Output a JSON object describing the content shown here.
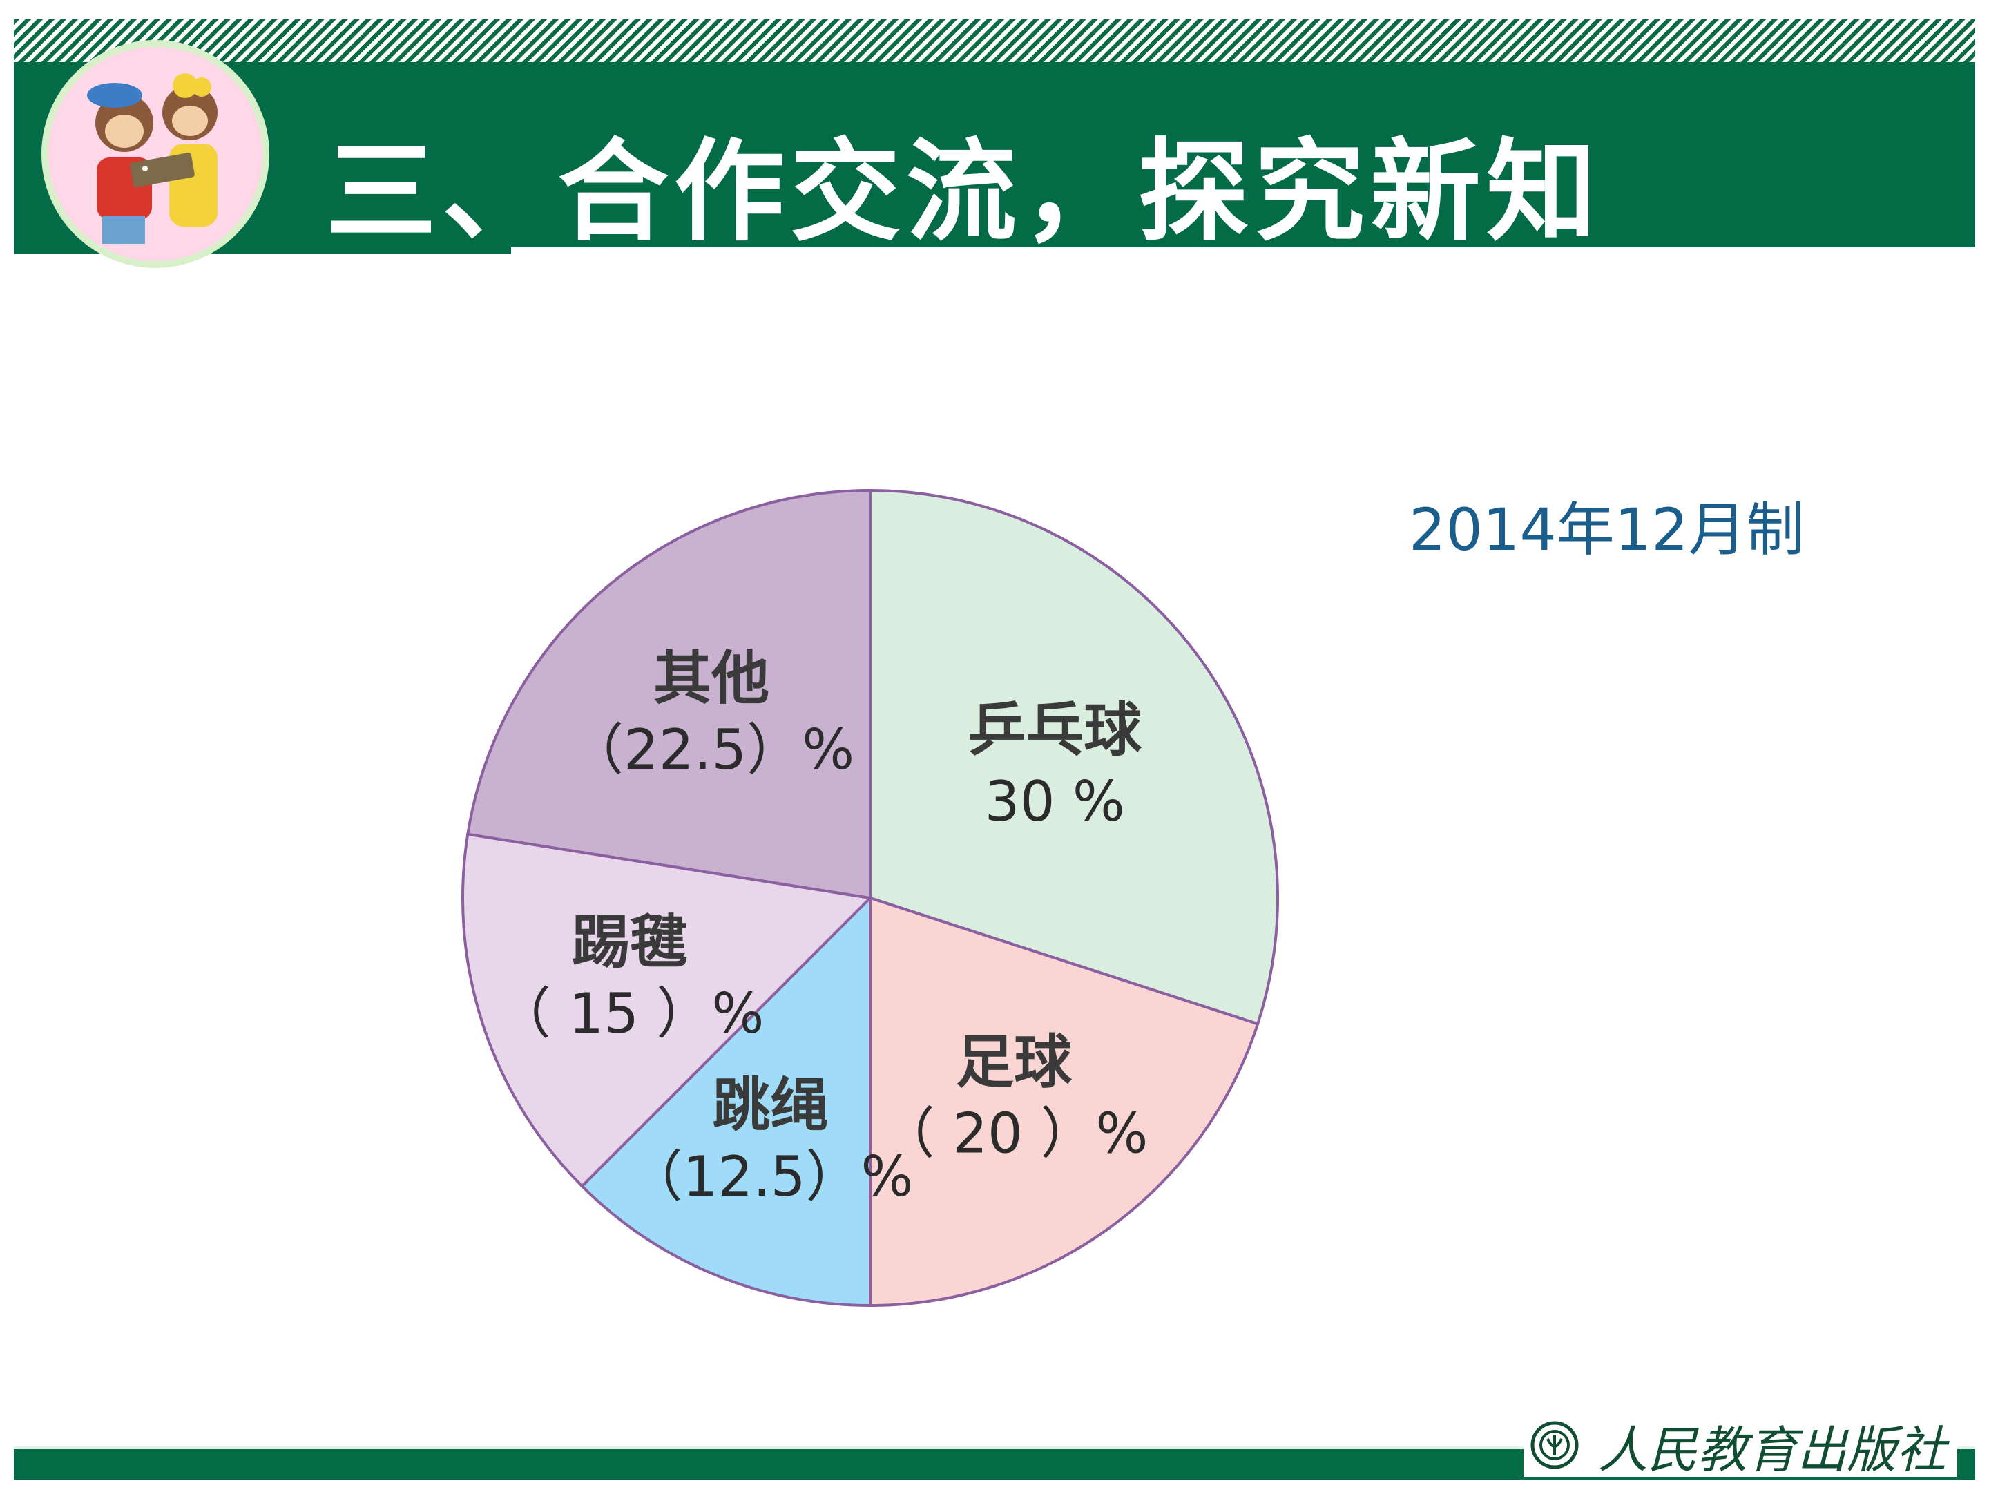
{
  "header": {
    "title": "三、合作交流，探究新知"
  },
  "note": {
    "date": "2014年12月制"
  },
  "footer": {
    "publisher": "人民教育出版社"
  },
  "colors": {
    "header_green": "#036b45",
    "pingpong": "#d9eedf",
    "football": "#f9d5d3",
    "jumprope": "#a0dcf7",
    "shuttlecock": "#e8d6ea",
    "other": "#c8b2d0",
    "outline": "#8c5fa0"
  },
  "chart_data": {
    "type": "pie",
    "categories": [
      "乒乓球",
      "足球",
      "跳绳",
      "踢毽",
      "其他"
    ],
    "values": [
      30,
      20,
      12.5,
      15,
      22.5
    ],
    "value_labels": [
      "30 %",
      "（ 20 ）%",
      "（12.5）%",
      "（ 15 ）%",
      "（22.5）%"
    ],
    "start": "12 o'clock",
    "direction": "clockwise"
  }
}
